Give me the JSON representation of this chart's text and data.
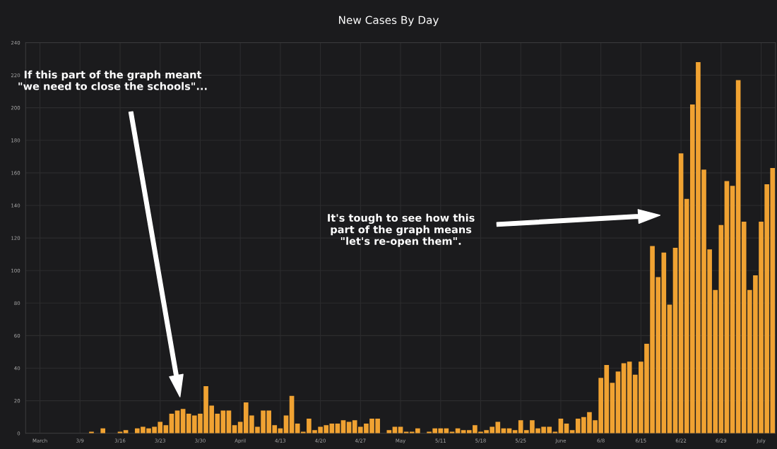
{
  "chart_data": {
    "type": "bar",
    "title": "New Cases By Day",
    "categories": [
      null,
      null,
      "March",
      null,
      null,
      null,
      null,
      null,
      null,
      "3/9",
      null,
      null,
      null,
      null,
      null,
      null,
      "3/16",
      null,
      null,
      null,
      null,
      null,
      null,
      "3/23",
      null,
      null,
      null,
      null,
      null,
      null,
      "3/30",
      null,
      null,
      null,
      null,
      null,
      null,
      "April",
      null,
      null,
      null,
      null,
      null,
      null,
      "4/13",
      null,
      null,
      null,
      null,
      null,
      null,
      "4/20",
      null,
      null,
      null,
      null,
      null,
      null,
      "4/27",
      null,
      null,
      null,
      null,
      null,
      null,
      "May",
      null,
      null,
      null,
      null,
      null,
      null,
      "5/11",
      null,
      null,
      null,
      null,
      null,
      null,
      "5/18",
      null,
      null,
      null,
      null,
      null,
      null,
      "5/25",
      null,
      null,
      null,
      null,
      null,
      null,
      "June",
      null,
      null,
      null,
      null,
      null,
      null,
      "6/8",
      null,
      null,
      null,
      null,
      null,
      null,
      "6/15",
      null,
      null,
      null,
      null,
      null,
      null,
      "6/22",
      null,
      null,
      null,
      null,
      null,
      null,
      "6/29",
      null,
      null,
      null,
      null,
      null,
      null,
      "July",
      null,
      null
    ],
    "values": [
      0,
      0,
      0,
      0,
      0,
      0,
      0,
      0,
      0,
      0,
      0,
      1,
      0,
      3,
      0,
      0,
      1,
      2,
      0,
      3,
      4,
      3,
      4,
      7,
      5,
      12,
      14,
      15,
      12,
      11,
      12,
      29,
      17,
      12,
      14,
      14,
      5,
      7,
      19,
      11,
      4,
      14,
      14,
      5,
      3,
      11,
      23,
      6,
      1,
      9,
      2,
      4,
      5,
      6,
      6,
      8,
      7,
      8,
      4,
      6,
      9,
      9,
      0,
      2,
      4,
      4,
      1,
      1,
      3,
      0,
      1,
      3,
      3,
      3,
      1,
      3,
      2,
      2,
      5,
      1,
      2,
      4,
      7,
      3,
      3,
      2,
      8,
      2,
      8,
      3,
      4,
      4,
      1,
      9,
      6,
      2,
      9,
      10,
      13,
      8,
      34,
      42,
      31,
      38,
      43,
      44,
      36,
      44,
      55,
      115,
      96,
      111,
      79,
      114,
      172,
      144,
      202,
      228,
      162,
      113,
      88,
      128,
      155,
      152,
      217,
      130,
      88,
      97,
      130,
      153,
      163
    ],
    "color": "#f0a232",
    "ylim": [
      0,
      240
    ],
    "yticks": [
      0,
      20,
      40,
      60,
      80,
      100,
      120,
      140,
      160,
      180,
      200,
      220,
      240
    ],
    "grid": true,
    "annotations": [
      "If this part of the graph meant\n\"we need to close the schools\"...",
      "It's tough to see how this\npart of the graph means\n\"let's re-open them\"."
    ]
  }
}
